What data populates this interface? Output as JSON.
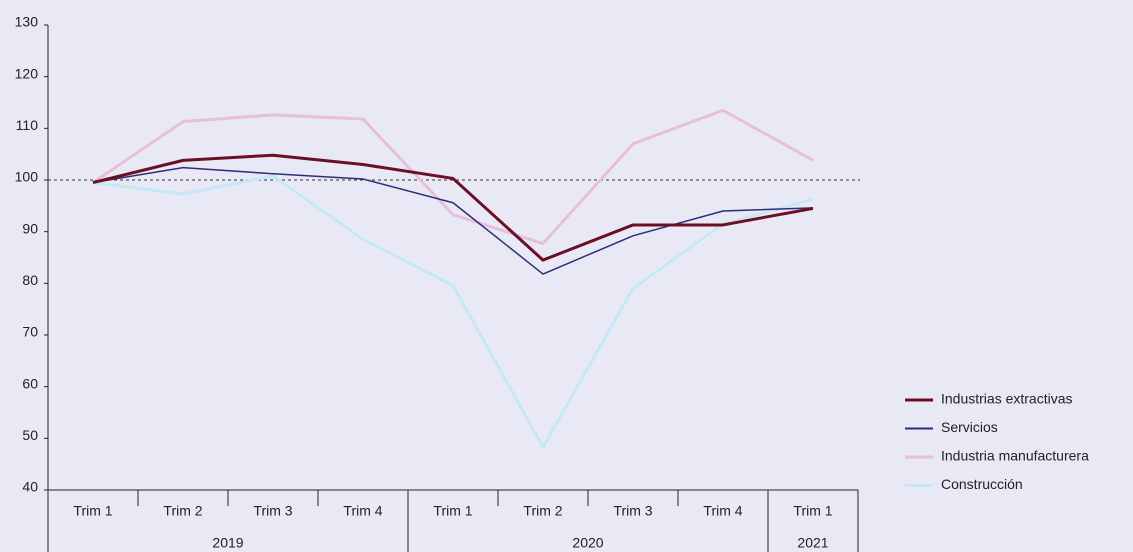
{
  "chart_data": {
    "type": "line",
    "categories": [
      "Trim 1",
      "Trim 2",
      "Trim 3",
      "Trim 4",
      "Trim 1",
      "Trim 2",
      "Trim 3",
      "Trim 4",
      "Trim 1"
    ],
    "groups": [
      {
        "label": "2019",
        "span": 4
      },
      {
        "label": "2020",
        "span": 4
      },
      {
        "label": "2021",
        "span": 1
      }
    ],
    "series": [
      {
        "name": "Industrias extractivas",
        "color": "#6b0f24",
        "width": 3,
        "values": [
          99.5,
          103.8,
          104.8,
          103,
          100.3,
          84.5,
          91.3,
          91.3,
          94.5
        ]
      },
      {
        "name": "Servicios",
        "color": "#2b2f7a",
        "width": 1.5,
        "values": [
          99.5,
          102.4,
          101.2,
          100.2,
          95.6,
          81.8,
          89.2,
          94,
          94.6
        ]
      },
      {
        "name": "Industria manufacturera",
        "color": "#e8bfd8",
        "width": 3,
        "values": [
          99.5,
          111.3,
          112.6,
          111.8,
          93.3,
          87.7,
          107,
          113.5,
          103.8
        ]
      },
      {
        "name": "Construcción",
        "color": "#c6e8f6",
        "width": 3,
        "values": [
          99.5,
          97.3,
          100.8,
          88.5,
          79.6,
          48.3,
          79,
          91.5,
          96.3
        ]
      }
    ],
    "reference_line": 100,
    "ylim": [
      40,
      130
    ],
    "yticks": [
      40,
      50,
      60,
      70,
      80,
      90,
      100,
      110,
      120,
      130
    ]
  }
}
